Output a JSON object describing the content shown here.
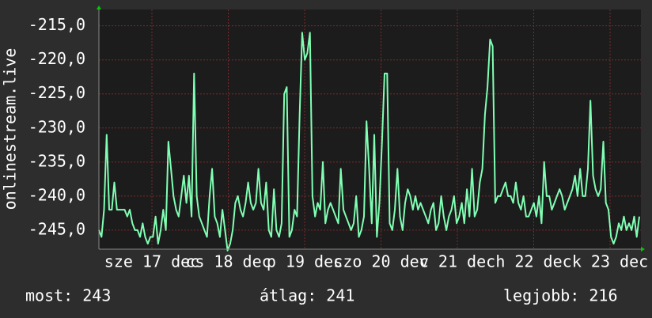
{
  "chart_data": {
    "type": "line",
    "y_label": "onlinestream.live",
    "x_labels": [
      "sze 17 dec",
      "cs 18 dec",
      "p 19 dec",
      "szo 20 dec",
      "v 21 dec",
      "h 22 dec",
      "k 23 dec"
    ],
    "ylim": [
      -247.8,
      -212.6
    ],
    "yticks": [
      {
        "value": -245,
        "label": "-245,0"
      },
      {
        "value": -240,
        "label": "-240,0"
      },
      {
        "value": -235,
        "label": "-235,0"
      },
      {
        "value": -230,
        "label": "-230,0"
      },
      {
        "value": -225,
        "label": "-225,0"
      },
      {
        "value": -220,
        "label": "-220,0"
      },
      {
        "value": -215,
        "label": "-215,0"
      }
    ],
    "grid": true,
    "series": [
      {
        "color": "#80ffb4",
        "values": [
          -245,
          -246,
          -242,
          -231,
          -242,
          -242,
          -238,
          -242,
          -242,
          -242,
          -242,
          -243,
          -242,
          -244,
          -245,
          -245,
          -246,
          -244,
          -246,
          -247,
          -246,
          -246,
          -243,
          -247,
          -245,
          -242,
          -245,
          -232,
          -236,
          -240,
          -242,
          -243,
          -240,
          -237,
          -241,
          -237,
          -243,
          -222,
          -240,
          -243,
          -244,
          -245,
          -246,
          -240,
          -236,
          -243,
          -244,
          -246,
          -242,
          -245,
          -248,
          -247,
          -245,
          -241,
          -240,
          -242,
          -243,
          -241,
          -238,
          -241,
          -242,
          -241,
          -236,
          -241,
          -242,
          -238,
          -245,
          -246,
          -239,
          -245,
          -246,
          -244,
          -225,
          -224,
          -246,
          -245,
          -242,
          -243,
          -228,
          -216,
          -220,
          -219,
          -216,
          -240,
          -243,
          -241,
          -242,
          -235,
          -244,
          -242,
          -241,
          -242,
          -243,
          -244,
          -236,
          -242,
          -243,
          -244,
          -245,
          -244,
          -240,
          -246,
          -245,
          -243,
          -229,
          -236,
          -244,
          -231,
          -246,
          -241,
          -232,
          -222,
          -222,
          -244,
          -245,
          -242,
          -236,
          -243,
          -245,
          -241,
          -239,
          -240,
          -242,
          -240,
          -242,
          -241,
          -242,
          -243,
          -244,
          -242,
          -241,
          -245,
          -244,
          -240,
          -243,
          -245,
          -243,
          -242,
          -240,
          -244,
          -243,
          -241,
          -244,
          -239,
          -243,
          -236,
          -243,
          -242,
          -238,
          -236,
          -228,
          -224,
          -217,
          -218,
          -241,
          -240,
          -240,
          -239,
          -238,
          -240,
          -240,
          -241,
          -238,
          -241,
          -242,
          -240,
          -243,
          -243,
          -242,
          -241,
          -243,
          -240,
          -244,
          -235,
          -240,
          -240,
          -242,
          -241,
          -240,
          -239,
          -240,
          -242,
          -241,
          -240,
          -239,
          -237,
          -240,
          -236,
          -240,
          -240,
          -236,
          -226,
          -237,
          -239,
          -240,
          -239,
          -232,
          -241,
          -242,
          -246,
          -247,
          -246,
          -244,
          -245,
          -243,
          -245,
          -244,
          -245,
          -243,
          -246,
          -243
        ]
      }
    ],
    "summary": [
      "most: 243",
      "átlag: 241",
      "legjobb: 216"
    ]
  }
}
